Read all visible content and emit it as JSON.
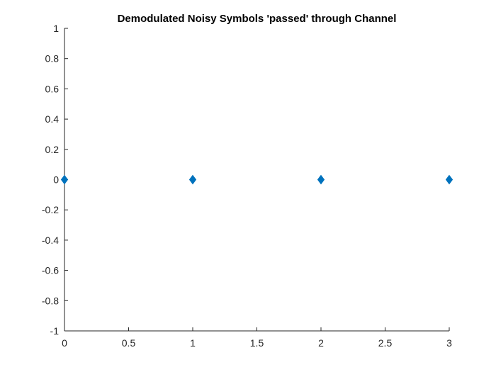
{
  "chart_data": {
    "type": "scatter",
    "title": "Demodulated Noisy Symbols 'passed' through Channel",
    "xlabel": "",
    "ylabel": "",
    "xlim": [
      0,
      3
    ],
    "ylim": [
      -1,
      1
    ],
    "xticks": [
      0,
      0.5,
      1,
      1.5,
      2,
      2.5,
      3
    ],
    "xtick_labels": [
      "0",
      "0.5",
      "1",
      "1.5",
      "2",
      "2.5",
      "3"
    ],
    "yticks": [
      1,
      0.8,
      0.6,
      0.4,
      0.2,
      0,
      -0.2,
      -0.4,
      -0.6,
      -0.8,
      -1
    ],
    "ytick_labels": [
      "1",
      "0.8",
      "0.6",
      "0.4",
      "0.2",
      "0",
      "-0.2",
      "-0.4",
      "-0.6",
      "-0.8",
      "-1"
    ],
    "grid": false,
    "marker": "diamond",
    "marker_color": "#0072BD",
    "series": [
      {
        "x": [
          0,
          1,
          2,
          3
        ],
        "y": [
          0,
          0,
          0,
          0
        ]
      }
    ]
  }
}
